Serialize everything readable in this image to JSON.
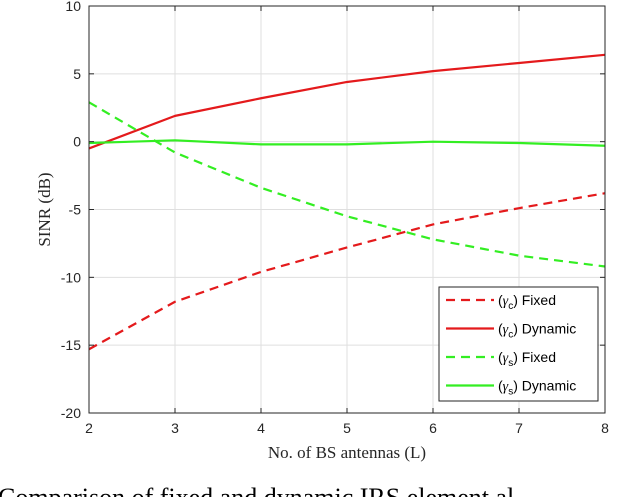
{
  "chart_data": {
    "type": "line",
    "xlabel": "No. of BS antennas (L)",
    "ylabel": "SINR (dB)",
    "xlim": [
      2,
      8
    ],
    "ylim": [
      -20,
      10
    ],
    "xticks": [
      "2",
      "3",
      "4",
      "5",
      "6",
      "7",
      "8"
    ],
    "yticks": [
      "10",
      "5",
      "0",
      "-5",
      "-10",
      "-15",
      "-20"
    ],
    "grid": true,
    "legend_position": "bottom-right",
    "x": [
      2,
      3,
      4,
      5,
      6,
      7,
      8
    ],
    "series": [
      {
        "name": "(γc) Fixed",
        "symbol": "γ",
        "sub": "c",
        "suffix": " Fixed",
        "color": "#e41a1c",
        "dash": true,
        "values": [
          -15.3,
          -11.8,
          -9.6,
          -7.8,
          -6.1,
          -4.9,
          -3.8
        ]
      },
      {
        "name": "(γc) Dynamic",
        "symbol": "γ",
        "sub": "c",
        "suffix": " Dynamic",
        "color": "#e41a1c",
        "dash": false,
        "values": [
          -0.5,
          1.9,
          3.2,
          4.4,
          5.2,
          5.8,
          6.4
        ]
      },
      {
        "name": "(γs) Fixed",
        "symbol": "γ",
        "sub": "s",
        "suffix": " Fixed",
        "color": "#33ee22",
        "dash": true,
        "values": [
          2.9,
          -0.8,
          -3.4,
          -5.5,
          -7.2,
          -8.4,
          -9.2
        ]
      },
      {
        "name": "(γs) Dynamic",
        "symbol": "γ",
        "sub": "s",
        "suffix": " Dynamic",
        "color": "#33ee22",
        "dash": false,
        "values": [
          -0.1,
          0.1,
          -0.2,
          -0.2,
          0.0,
          -0.1,
          -0.3
        ]
      }
    ]
  },
  "caption": "Comparison of fixed and dynamic IRS element al"
}
